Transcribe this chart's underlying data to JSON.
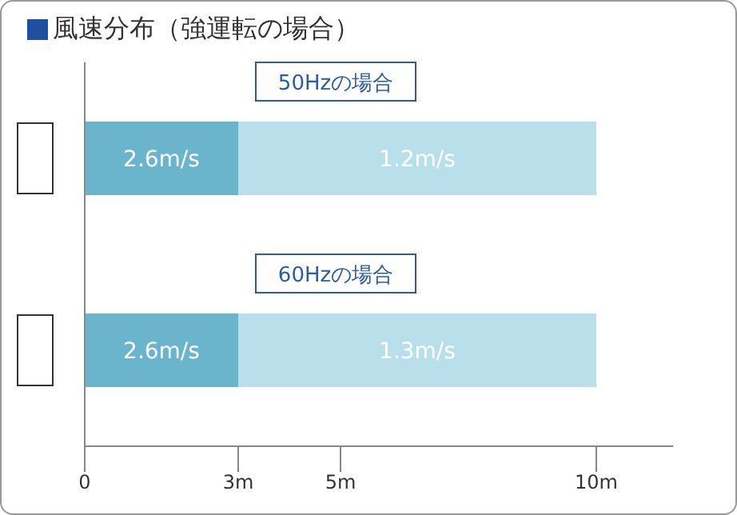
{
  "chart_data": {
    "type": "bar",
    "title": "風速分布（強運転の場合）",
    "orientation": "horizontal",
    "stacked": true,
    "categories": [
      "50Hzの場合",
      "60Hzの場合"
    ],
    "series": [
      {
        "color": "#6ab4cc",
        "values": [
          3,
          3
        ]
      },
      {
        "color": "#b9dfeb",
        "values": [
          7,
          7
        ]
      }
    ],
    "annotations": [
      "2.6m/s",
      "1.2m/s",
      "2.6m/s",
      "1.3m/s"
    ],
    "xlim": [
      0,
      11.5
    ],
    "xticks": [
      {
        "value": 0,
        "label": "0"
      },
      {
        "value": 3,
        "label": "3m"
      },
      {
        "value": 5,
        "label": "5m"
      },
      {
        "value": 10,
        "label": "10m"
      }
    ],
    "grid": false,
    "legend": false
  }
}
